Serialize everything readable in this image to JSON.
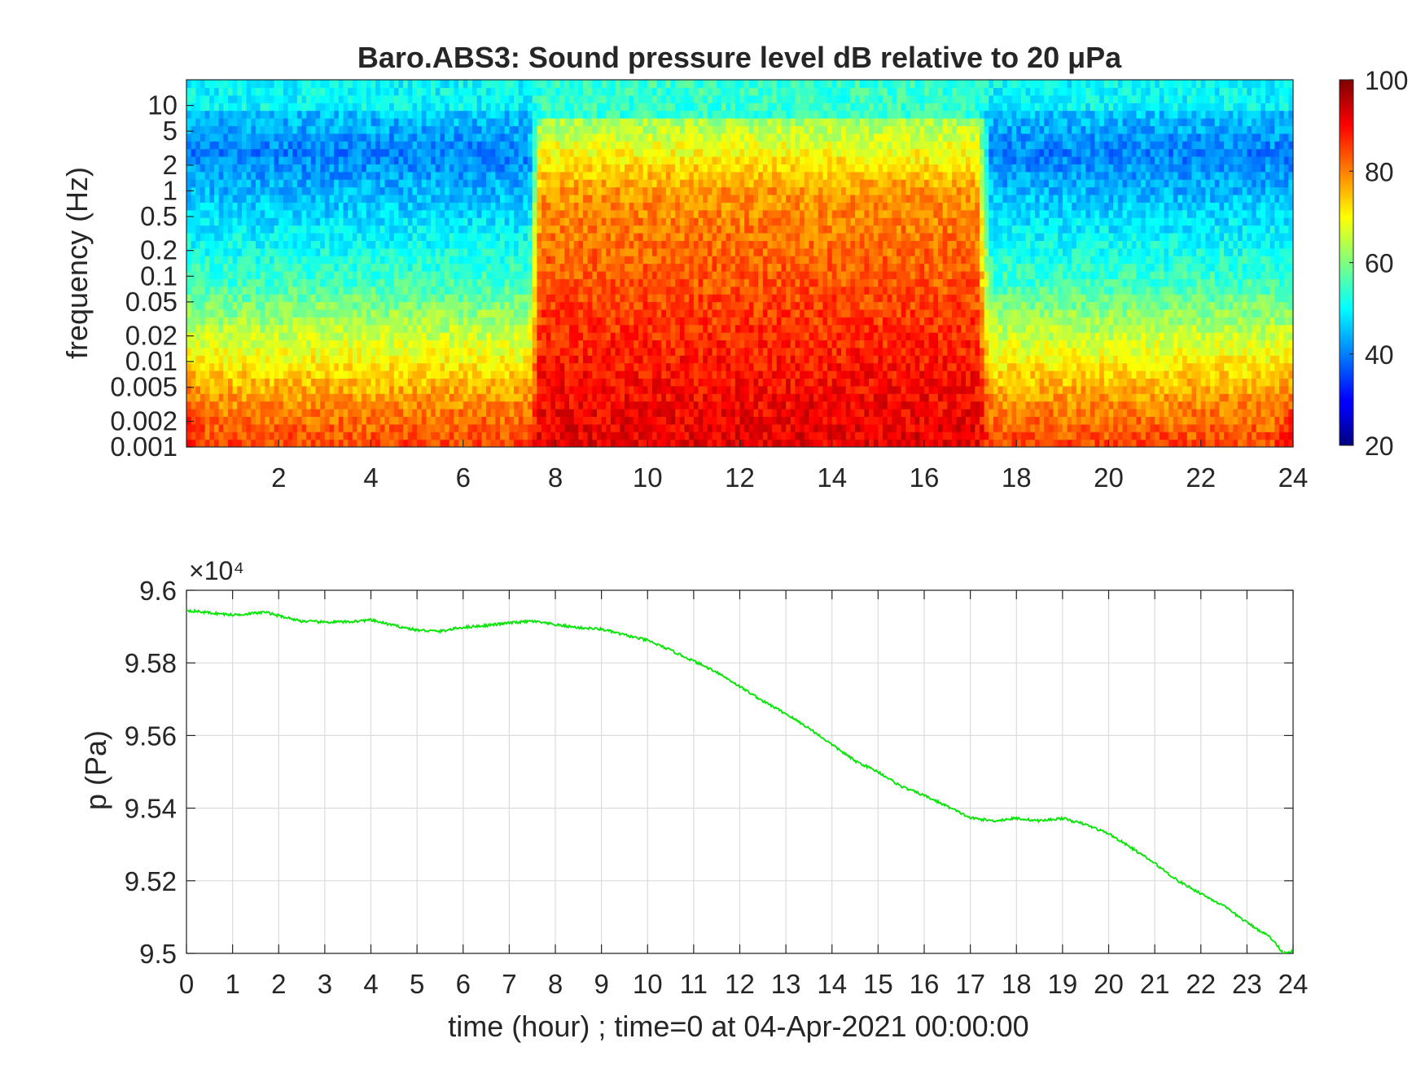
{
  "chart_data": [
    {
      "type": "heatmap",
      "title": "Baro.ABS3: Sound pressure level dB relative to 20 μPa",
      "xlabel": "",
      "ylabel": "frequency (Hz)",
      "y_scale": "log",
      "xlim": [
        0,
        24
      ],
      "ylim": [
        0.001,
        20
      ],
      "x_ticks": [
        2,
        4,
        6,
        8,
        10,
        12,
        14,
        16,
        18,
        20,
        22,
        24
      ],
      "y_ticks": [
        0.001,
        0.002,
        0.005,
        0.01,
        0.02,
        0.05,
        0.1,
        0.2,
        0.5,
        1,
        2,
        5,
        10
      ],
      "y_tick_labels": [
        "0.001",
        "0.002",
        "0.005",
        "0.01",
        "0.02",
        "0.05",
        "0.1",
        "0.2",
        "0.5",
        "1",
        "2",
        "5",
        "10"
      ],
      "colormap": "jet",
      "colorbar": {
        "range": [
          20,
          100
        ],
        "ticks": [
          20,
          40,
          60,
          80,
          100
        ],
        "placement": "right"
      },
      "activity_windows_hour": [
        [
          7.5,
          17.3
        ]
      ],
      "typical_levels_db": {
        "quiet_low_freq": 85,
        "quiet_mid_freq": 55,
        "quiet_1_5Hz": 40,
        "active_low_freq": 92,
        "active_mid_freq": 78,
        "above_5Hz": 50
      }
    },
    {
      "type": "line",
      "xlabel": "time (hour) ; time=0 at 04-Apr-2021 00:00:00",
      "ylabel": "p (Pa)",
      "exponent_label": "×10⁴",
      "xlim": [
        0,
        24
      ],
      "ylim": [
        9.5,
        9.6
      ],
      "x_ticks": [
        0,
        1,
        2,
        3,
        4,
        5,
        6,
        7,
        8,
        9,
        10,
        11,
        12,
        13,
        14,
        15,
        16,
        17,
        18,
        19,
        20,
        21,
        22,
        23,
        24
      ],
      "y_ticks": [
        9.5,
        9.52,
        9.54,
        9.56,
        9.58,
        9.6
      ],
      "y_tick_labels": [
        "9.5",
        "9.52",
        "9.54",
        "9.56",
        "9.58",
        "9.6"
      ],
      "grid": true,
      "color": "#00e600",
      "series": [
        {
          "x": [
            0,
            0.5,
            1,
            1.5,
            1.7,
            2,
            2.5,
            3,
            3.5,
            4,
            4.5,
            5,
            5.5,
            6,
            6.5,
            7,
            7.5,
            8,
            8.5,
            9,
            9.5,
            10,
            10.5,
            11,
            11.5,
            12,
            12.5,
            13,
            13.5,
            14,
            14.5,
            15,
            15.5,
            16,
            16.5,
            17,
            17.5,
            18,
            18.5,
            19,
            19.5,
            20,
            20.5,
            21,
            21.5,
            22,
            22.5,
            23,
            23.5,
            23.8,
            24
          ],
          "values": [
            9.5945,
            9.5938,
            9.5932,
            9.5937,
            9.594,
            9.593,
            9.5915,
            9.5912,
            9.5913,
            9.5918,
            9.5903,
            9.589,
            9.5887,
            9.5898,
            9.5903,
            9.591,
            9.5915,
            9.5905,
            9.5897,
            9.5893,
            9.5877,
            9.5862,
            9.5835,
            9.5805,
            9.5775,
            9.5735,
            9.5695,
            9.566,
            9.562,
            9.5575,
            9.553,
            9.55,
            9.546,
            9.5435,
            9.5405,
            9.5373,
            9.5365,
            9.5372,
            9.5365,
            9.5372,
            9.5355,
            9.533,
            9.529,
            9.5248,
            9.52,
            9.5165,
            9.513,
            9.5085,
            9.5045,
            9.5,
            9.5008
          ]
        }
      ]
    }
  ]
}
